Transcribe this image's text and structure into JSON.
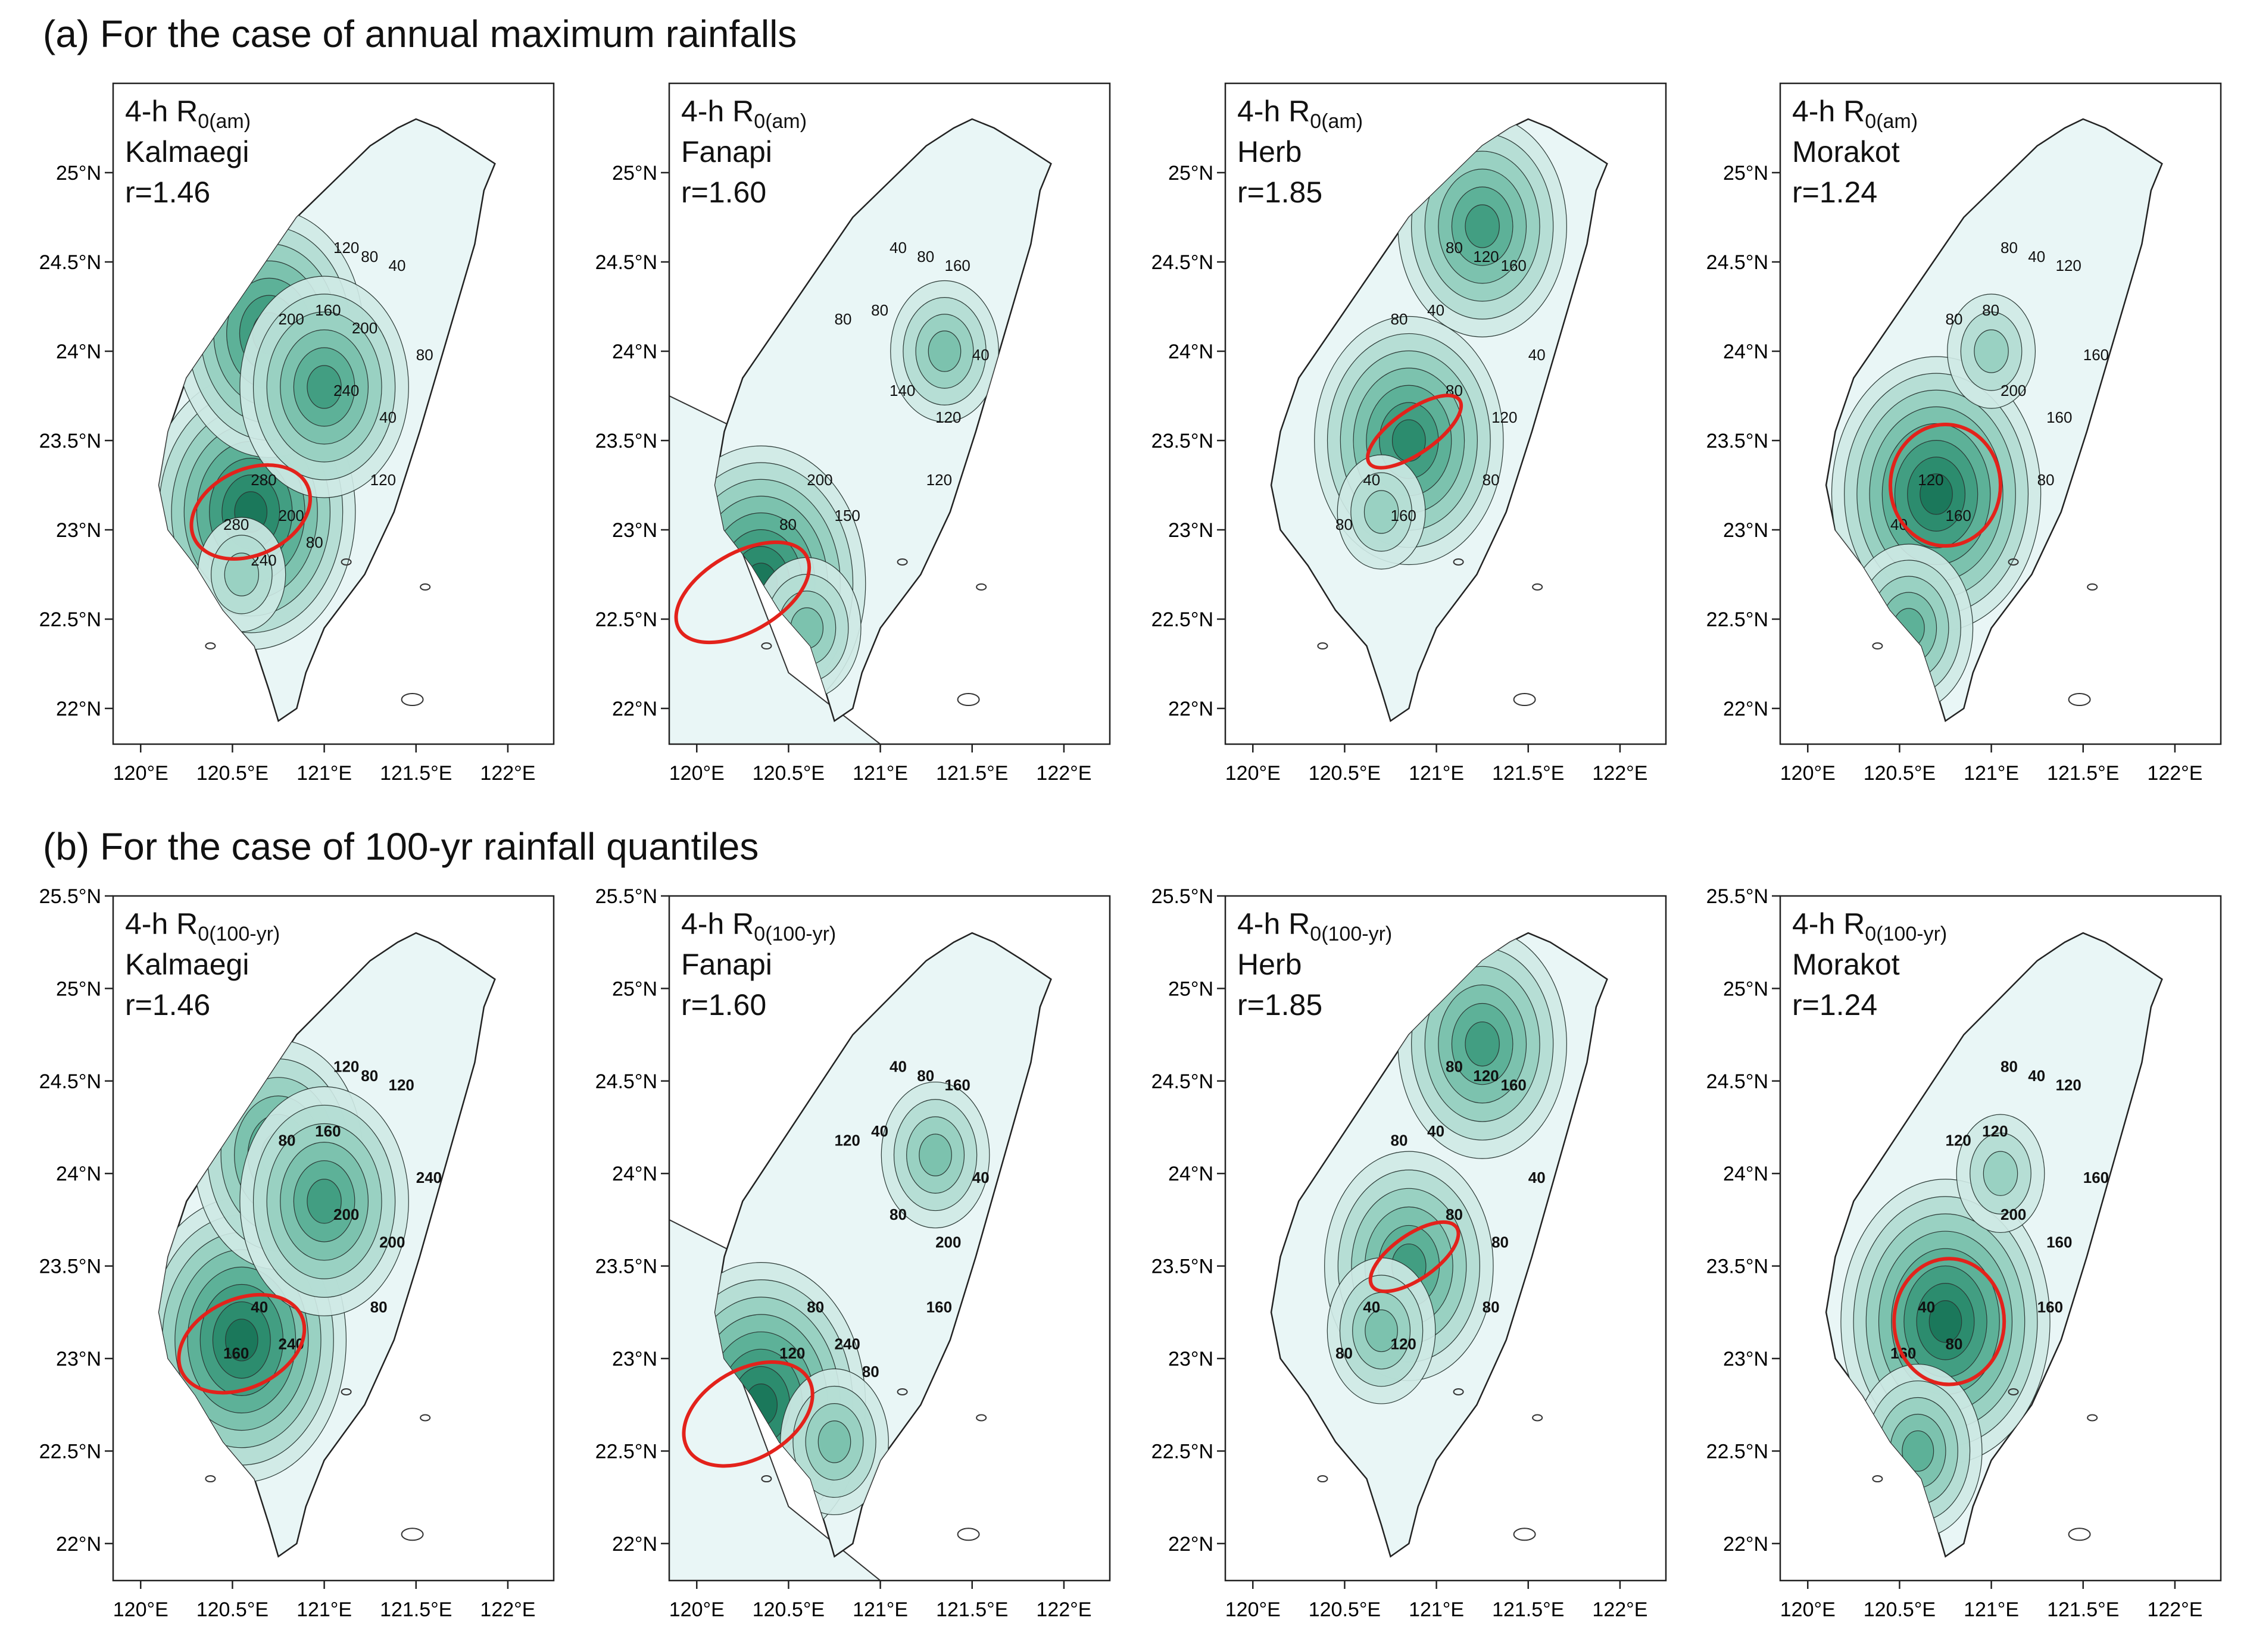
{
  "sections": [
    {
      "title": "(a) For the case of annual maximum rainfalls",
      "sub": "0(am)"
    },
    {
      "title": "(b) For the case of 100-yr rainfall quantiles",
      "sub": "0(100-yr)"
    }
  ],
  "duration": "4-h",
  "r_symbol": "R",
  "panels": [
    {
      "typhoon": "Kalmaegi",
      "r": "r=1.46"
    },
    {
      "typhoon": "Fanapi",
      "r": "r=1.60"
    },
    {
      "typhoon": "Herb",
      "r": "r=1.85"
    },
    {
      "typhoon": "Morakot",
      "r": "r=1.24"
    }
  ],
  "contours": {
    "a": [
      [
        "120",
        "80",
        "40",
        "200",
        "160",
        "80",
        "240",
        "280",
        "200",
        "40",
        "280",
        "120",
        "80",
        "200",
        "240"
      ],
      [
        "40",
        "80",
        "160",
        "80",
        "80",
        "40",
        "140",
        "200",
        "150",
        "120",
        "80",
        "120"
      ],
      [
        "80",
        "120",
        "160",
        "80",
        "40",
        "40",
        "80",
        "40",
        "160",
        "120",
        "80",
        "80"
      ],
      [
        "80",
        "40",
        "120",
        "80",
        "80",
        "160",
        "200",
        "120",
        "160",
        "160",
        "40",
        "80"
      ]
    ],
    "b": [
      [
        "120",
        "80",
        "120",
        "80",
        "160",
        "240",
        "200",
        "40",
        "240",
        "200",
        "160",
        "80"
      ],
      [
        "40",
        "80",
        "160",
        "120",
        "40",
        "40",
        "80",
        "80",
        "240",
        "200",
        "120",
        "160",
        "80"
      ],
      [
        "80",
        "120",
        "160",
        "80",
        "40",
        "40",
        "80",
        "40",
        "120",
        "80",
        "80",
        "80"
      ],
      [
        "80",
        "40",
        "120",
        "120",
        "120",
        "160",
        "200",
        "40",
        "80",
        "160",
        "160",
        "160"
      ]
    ]
  },
  "axes": {
    "lon_ticks": [
      "120°E",
      "120.5°E",
      "121°E",
      "121.5°E",
      "122°E"
    ],
    "lat_ticks_a": [
      "22°N",
      "22.5°N",
      "23°N",
      "23.5°N",
      "24°N",
      "24.5°N",
      "25°N"
    ],
    "lat_ticks_b": [
      "22°N",
      "22.5°N",
      "23°N",
      "23.5°N",
      "24°N",
      "24.5°N",
      "25°N",
      "25.5°N"
    ]
  },
  "colors": {
    "fill_light": "#e9f6f6",
    "fill_mid": "#8fcfbc",
    "fill_dark": "#1e7a5f",
    "ellipse": "#e3221b"
  }
}
